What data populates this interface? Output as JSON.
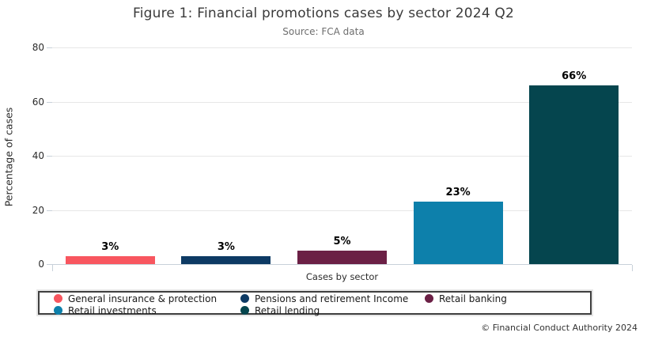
{
  "figure": {
    "footer": "© Financial Conduct Authority 2024"
  },
  "chart_data": {
    "type": "bar",
    "title": "Figure 1: Financial promotions cases by sector 2024 Q2",
    "subtitle": "Source: FCA data",
    "xlabel": "Cases by sector",
    "ylabel": "Percentage of cases",
    "categories": [
      "General insurance & protection",
      "Pensions and retirement Income",
      "Retail banking",
      "Retail investments",
      "Retail lending"
    ],
    "values": [
      3,
      3,
      5,
      23,
      66
    ],
    "data_labels": [
      "3%",
      "3%",
      "5%",
      "23%",
      "66%"
    ],
    "colors": [
      "#f8565f",
      "#0d3a64",
      "#6b2045",
      "#0d80ab",
      "#05454e"
    ],
    "ylim": [
      0,
      80
    ],
    "yticks": [
      0,
      20,
      40,
      60,
      80
    ],
    "grid": true,
    "legend_position": "bottom"
  }
}
